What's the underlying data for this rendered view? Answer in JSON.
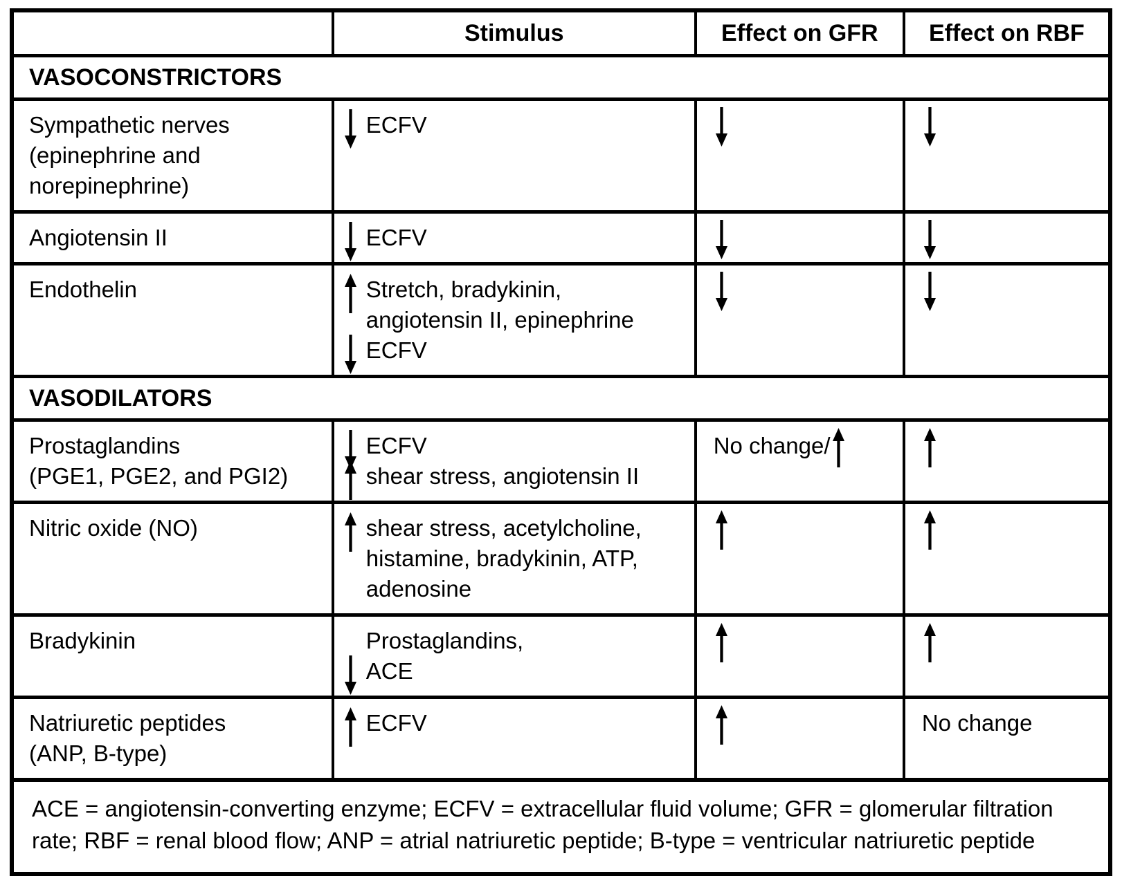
{
  "colors": {
    "background": "#ffffff",
    "text": "#000000",
    "border": "#000000"
  },
  "table": {
    "headers": [
      "",
      "Stimulus",
      "Effect on GFR",
      "Effect on RBF"
    ],
    "sections": [
      {
        "title": "VASOCONSTRICTORS",
        "rows": [
          {
            "agent_lines": [
              "Sympathetic nerves",
              "(epinephrine and",
              "norepinephrine)"
            ],
            "stimulus_lines": [
              {
                "arrow": "down",
                "text": "ECFV"
              }
            ],
            "effect_gfr": [
              {
                "arrow": "down"
              }
            ],
            "effect_rbf": [
              {
                "arrow": "down"
              }
            ]
          },
          {
            "agent_lines": [
              "Angiotensin II"
            ],
            "stimulus_lines": [
              {
                "arrow": "down",
                "text": "ECFV"
              }
            ],
            "effect_gfr": [
              {
                "arrow": "down"
              }
            ],
            "effect_rbf": [
              {
                "arrow": "down"
              }
            ]
          },
          {
            "agent_lines": [
              "Endothelin"
            ],
            "stimulus_lines": [
              {
                "arrow": "up",
                "text": "Stretch, bradykinin,"
              },
              {
                "arrow": null,
                "text": "angiotensin II, epinephrine"
              },
              {
                "arrow": "down",
                "text": "ECFV"
              }
            ],
            "effect_gfr": [
              {
                "arrow": "down"
              }
            ],
            "effect_rbf": [
              {
                "arrow": "down"
              }
            ]
          }
        ]
      },
      {
        "title": "VASODILATORS",
        "rows": [
          {
            "agent_lines": [
              "Prostaglandins",
              "(PGE1, PGE2, and PGI2)"
            ],
            "stimulus_lines": [
              {
                "arrow": "down",
                "text": "ECFV"
              },
              {
                "arrow": "up",
                "text": "shear stress, angiotensin II"
              }
            ],
            "effect_gfr": [
              {
                "text": "No change/"
              },
              {
                "arrow": "up"
              }
            ],
            "effect_rbf": [
              {
                "arrow": "up"
              }
            ]
          },
          {
            "agent_lines": [
              "Nitric oxide (NO)"
            ],
            "stimulus_lines": [
              {
                "arrow": "up",
                "text": "shear stress, acetylcholine,"
              },
              {
                "arrow": null,
                "text": "histamine, bradykinin, ATP,"
              },
              {
                "arrow": null,
                "text": "adenosine"
              }
            ],
            "effect_gfr": [
              {
                "arrow": "up"
              }
            ],
            "effect_rbf": [
              {
                "arrow": "up"
              }
            ]
          },
          {
            "agent_lines": [
              "Bradykinin"
            ],
            "stimulus_lines": [
              {
                "arrow": null,
                "text": "Prostaglandins,"
              },
              {
                "arrow": "down",
                "text": "ACE"
              }
            ],
            "effect_gfr": [
              {
                "arrow": "up"
              }
            ],
            "effect_rbf": [
              {
                "arrow": "up"
              }
            ]
          },
          {
            "agent_lines": [
              "Natriuretic peptides",
              "(ANP, B-type)"
            ],
            "stimulus_lines": [
              {
                "arrow": "up",
                "text": "ECFV"
              }
            ],
            "effect_gfr": [
              {
                "arrow": "up"
              }
            ],
            "effect_rbf": [
              {
                "text": "No change"
              }
            ]
          }
        ]
      }
    ],
    "footnote": "ACE = angiotensin-converting enzyme; ECFV = extracellular fluid volume; GFR = glomerular filtration rate; RBF = renal blood flow; ANP = atrial natriuretic peptide; B-type = ventricular natriuretic peptide"
  }
}
